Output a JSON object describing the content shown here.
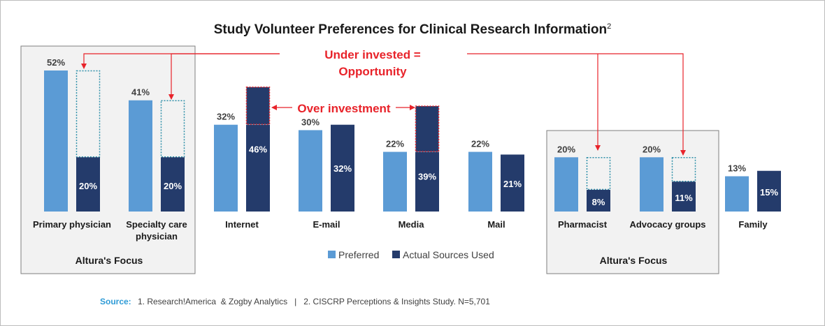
{
  "chart_data": {
    "type": "bar",
    "title": "Study Volunteer Preferences for Clinical Research Information",
    "title_superscript": "2",
    "categories": [
      "Primary physician",
      "Specialty care physician",
      "Internet",
      "E-mail",
      "Media",
      "Mail",
      "Pharmacist",
      "Advocacy groups",
      "Family"
    ],
    "category_lines": [
      [
        "Primary physician"
      ],
      [
        "Specialty care",
        "physician"
      ],
      [
        "Internet"
      ],
      [
        "E-mail"
      ],
      [
        "Media"
      ],
      [
        "Mail"
      ],
      [
        "Pharmacist"
      ],
      [
        "Advocacy groups"
      ],
      [
        "Family"
      ]
    ],
    "series": [
      {
        "name": "Preferred",
        "values": [
          52,
          41,
          32,
          30,
          22,
          22,
          20,
          20,
          13
        ],
        "color": "#5b9bd5"
      },
      {
        "name": "Actual Sources Used",
        "values": [
          20,
          20,
          46,
          32,
          39,
          21,
          8,
          11,
          15
        ],
        "color": "#243b6b"
      }
    ],
    "value_labels": {
      "Preferred": [
        "52%",
        "41%",
        "32%",
        "30%",
        "22%",
        "22%",
        "20%",
        "20%",
        "13%"
      ],
      "Actual Sources Used": [
        "20%",
        "20%",
        "46%",
        "32%",
        "39%",
        "21%",
        "8%",
        "11%",
        "15%"
      ]
    },
    "ylim": [
      0,
      58
    ],
    "grid": false,
    "legend_position": "bottom",
    "annotations": {
      "under_invested": [
        "Under invested =",
        "Opportunity"
      ],
      "over_investment": "Over investment"
    },
    "focus_label": "Altura's Focus",
    "colors": {
      "preferred": "#5b9bd5",
      "actual": "#243b6b",
      "annotation": "#e8232a",
      "dotted_outline": "#2e8fa8",
      "focus_fill": "#f2f2f2",
      "source_label": "#2e9bd6"
    }
  },
  "source": {
    "label": "Source:",
    "text": "1. Research!America  & Zogby Analytics   |   2. CISCRP Perceptions & Insights Study. N=5,701"
  }
}
